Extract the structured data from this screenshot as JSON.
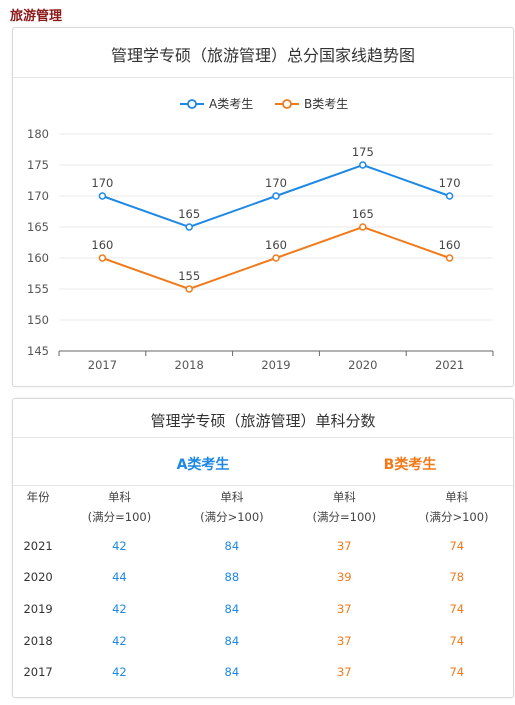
{
  "page_heading": "旅游管理",
  "chart_data": {
    "type": "line",
    "title": "管理学专硕（旅游管理）总分国家线趋势图",
    "categories": [
      "2017",
      "2018",
      "2019",
      "2020",
      "2021"
    ],
    "series": [
      {
        "name": "A类考生",
        "values": [
          170,
          165,
          170,
          175,
          170
        ],
        "color": "#1e88e5"
      },
      {
        "name": "B类考生",
        "values": [
          160,
          155,
          160,
          165,
          160
        ],
        "color": "#f07a1a"
      }
    ],
    "ylim": [
      145,
      180
    ],
    "yticks": [
      145,
      150,
      155,
      160,
      165,
      170,
      175,
      180
    ],
    "legend_position": "top-center",
    "grid": true
  },
  "table": {
    "title": "管理学专硕（旅游管理）单科分数",
    "group_a": "A类考生",
    "group_b": "B类考生",
    "col_year": "年份",
    "col_labels": [
      {
        "line1": "单科",
        "line2": "(满分=100)"
      },
      {
        "line1": "单科",
        "line2": "(满分>100)"
      },
      {
        "line1": "单科",
        "line2": "(满分=100)"
      },
      {
        "line1": "单科",
        "line2": "(满分>100)"
      }
    ],
    "rows": [
      {
        "year": "2021",
        "a1": "42",
        "a2": "84",
        "b1": "37",
        "b2": "74"
      },
      {
        "year": "2020",
        "a1": "44",
        "a2": "88",
        "b1": "39",
        "b2": "78"
      },
      {
        "year": "2019",
        "a1": "42",
        "a2": "84",
        "b1": "37",
        "b2": "74"
      },
      {
        "year": "2018",
        "a1": "42",
        "a2": "84",
        "b1": "37",
        "b2": "74"
      },
      {
        "year": "2017",
        "a1": "42",
        "a2": "84",
        "b1": "37",
        "b2": "74"
      }
    ]
  }
}
